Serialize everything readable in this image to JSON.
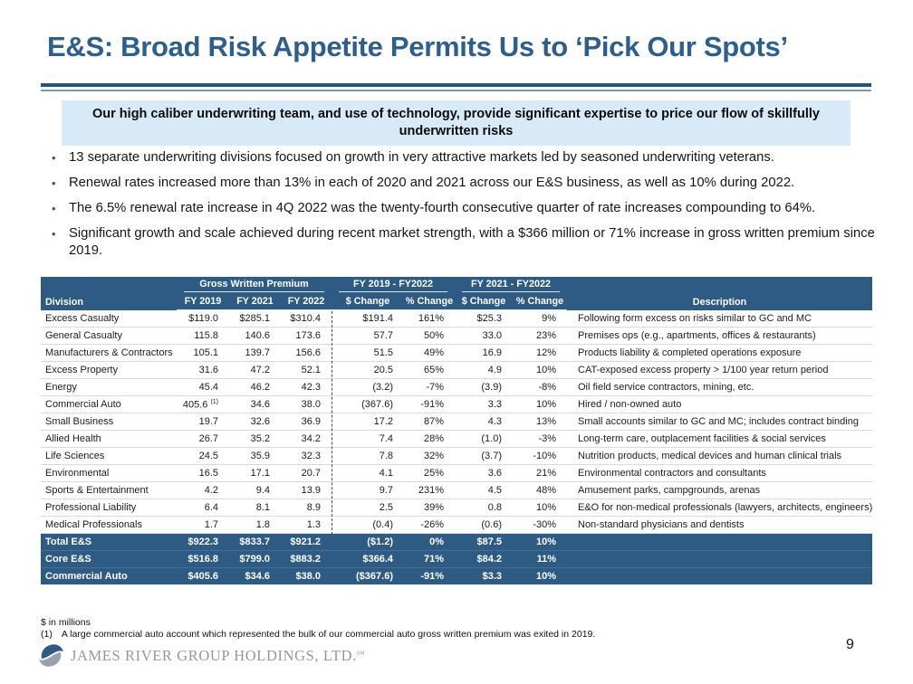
{
  "slide": {
    "title": "E&S: Broad Risk Appetite Permits Us to ‘Pick Our Spots’",
    "highlight": "Our high caliber underwriting team, and use of technology, provide significant expertise to price our flow of skillfully underwritten risks",
    "bullets": [
      "13 separate underwriting divisions focused on growth in very attractive markets led by seasoned underwriting veterans.",
      "Renewal rates increased more than 13% in each of 2020 and 2021 across our E&S business, as well as 10% during 2022.",
      "The 6.5% renewal rate increase in 4Q 2022 was the twenty-fourth consecutive quarter of rate increases compounding to 64%.",
      "Significant growth and scale achieved during recent market strength, with a $366 million or 71% increase in gross written premium since 2019."
    ],
    "page_number": "9"
  },
  "table": {
    "header": {
      "division": "Division",
      "gwp_group": "Gross Written Premium",
      "chg1_group": "FY 2019 - FY2022",
      "chg2_group": "FY 2021 - FY2022",
      "fy2019": "FY 2019",
      "fy2021": "FY 2021",
      "fy2022": "FY 2022",
      "dollar_change": "$ Change",
      "pct_change": "% Change",
      "description": "Description"
    },
    "rows": [
      {
        "division": "Excess Casualty",
        "fy2019": "$119.0",
        "fy2021": "$285.1",
        "fy2022": "$310.4",
        "chg1_d": "$191.4",
        "chg1_p": "161%",
        "chg2_d": "$25.3",
        "chg2_p": "9%",
        "desc": "Following form excess on risks similar to GC and MC"
      },
      {
        "division": "General Casualty",
        "fy2019": "115.8",
        "fy2021": "140.6",
        "fy2022": "173.6",
        "chg1_d": "57.7",
        "chg1_p": "50%",
        "chg2_d": "33.0",
        "chg2_p": "23%",
        "desc": "Premises ops (e.g., apartments, offices & restaurants)"
      },
      {
        "division": "Manufacturers & Contractors",
        "fy2019": "105.1",
        "fy2021": "139.7",
        "fy2022": "156.6",
        "chg1_d": "51.5",
        "chg1_p": "49%",
        "chg2_d": "16.9",
        "chg2_p": "12%",
        "desc": "Products liability & completed operations exposure"
      },
      {
        "division": "Excess Property",
        "fy2019": "31.6",
        "fy2021": "47.2",
        "fy2022": "52.1",
        "chg1_d": "20.5",
        "chg1_p": "65%",
        "chg2_d": "4.9",
        "chg2_p": "10%",
        "desc": "CAT-exposed excess property > 1/100 year return period"
      },
      {
        "division": "Energy",
        "fy2019": "45.4",
        "fy2021": "46.2",
        "fy2022": "42.3",
        "chg1_d": "(3.2)",
        "chg1_p": "-7%",
        "chg2_d": "(3.9)",
        "chg2_p": "-8%",
        "desc": "Oil field service contractors, mining, etc."
      },
      {
        "division": "Commercial Auto",
        "fy2019": "405.6 ",
        "fy2019_sup": "(1)",
        "fy2021": "34.6",
        "fy2022": "38.0",
        "chg1_d": "(367.6)",
        "chg1_p": "-91%",
        "chg2_d": "3.3",
        "chg2_p": "10%",
        "desc": "Hired / non-owned auto"
      },
      {
        "division": "Small Business",
        "fy2019": "19.7",
        "fy2021": "32.6",
        "fy2022": "36.9",
        "chg1_d": "17.2",
        "chg1_p": "87%",
        "chg2_d": "4.3",
        "chg2_p": "13%",
        "desc": "Small accounts similar to GC and MC; includes contract binding"
      },
      {
        "division": "Allied Health",
        "fy2019": "26.7",
        "fy2021": "35.2",
        "fy2022": "34.2",
        "chg1_d": "7.4",
        "chg1_p": "28%",
        "chg2_d": "(1.0)",
        "chg2_p": "-3%",
        "desc": "Long-term care, outplacement facilities & social services"
      },
      {
        "division": "Life Sciences",
        "fy2019": "24.5",
        "fy2021": "35.9",
        "fy2022": "32.3",
        "chg1_d": "7.8",
        "chg1_p": "32%",
        "chg2_d": "(3.7)",
        "chg2_p": "-10%",
        "desc": "Nutrition products, medical devices and human clinical trials"
      },
      {
        "division": "Environmental",
        "fy2019": "16.5",
        "fy2021": "17.1",
        "fy2022": "20.7",
        "chg1_d": "4.1",
        "chg1_p": "25%",
        "chg2_d": "3.6",
        "chg2_p": "21%",
        "desc": "Environmental contractors and consultants"
      },
      {
        "division": "Sports & Entertainment",
        "fy2019": "4.2",
        "fy2021": "9.4",
        "fy2022": "13.9",
        "chg1_d": "9.7",
        "chg1_p": "231%",
        "chg2_d": "4.5",
        "chg2_p": "48%",
        "desc": "Amusement parks, campgrounds, arenas"
      },
      {
        "division": "Professional Liability",
        "fy2019": "6.4",
        "fy2021": "8.1",
        "fy2022": "8.9",
        "chg1_d": "2.5",
        "chg1_p": "39%",
        "chg2_d": "0.8",
        "chg2_p": "10%",
        "desc": "E&O for non-medical professionals (lawyers, architects, engineers)"
      },
      {
        "division": "Medical Professionals",
        "fy2019": "1.7",
        "fy2021": "1.8",
        "fy2022": "1.3",
        "chg1_d": "(0.4)",
        "chg1_p": "-26%",
        "chg2_d": "(0.6)",
        "chg2_p": "-30%",
        "desc": "Non-standard physicians and dentists"
      }
    ],
    "totals": [
      {
        "division": "Total E&S",
        "fy2019": "$922.3",
        "fy2021": "$833.7",
        "fy2022": "$921.2",
        "chg1_d": "($1.2)",
        "chg1_p": "0%",
        "chg2_d": "$87.5",
        "chg2_p": "10%",
        "desc": ""
      },
      {
        "division": "Core E&S",
        "fy2019": "$516.8",
        "fy2021": "$799.0",
        "fy2022": "$883.2",
        "chg1_d": "$366.4",
        "chg1_p": "71%",
        "chg2_d": "$84.2",
        "chg2_p": "11%",
        "desc": ""
      },
      {
        "division": "Commercial Auto",
        "fy2019": "$405.6",
        "fy2021": "$34.6",
        "fy2022": "$38.0",
        "chg1_d": "($367.6)",
        "chg1_p": "-91%",
        "chg2_d": "$3.3",
        "chg2_p": "10%",
        "desc": ""
      }
    ]
  },
  "footnotes": {
    "units": "$ in millions",
    "note1_marker": "(1)",
    "note1": "A large commercial auto account which represented the bulk of our commercial auto gross written premium was exited in 2019."
  },
  "logo": {
    "text": "JAMES RIVER GROUP HOLDINGS, LTD.",
    "trademark": "SM"
  },
  "colors": {
    "title_blue": "#2D5F8E",
    "header_blue": "#2E5B84",
    "rule_dark": "#24557F",
    "rule_light": "#7A9BB8",
    "banner_bg": "#D8E9F8",
    "logo_blue": "#2D5B84",
    "logo_gray": "#99A2AB"
  }
}
